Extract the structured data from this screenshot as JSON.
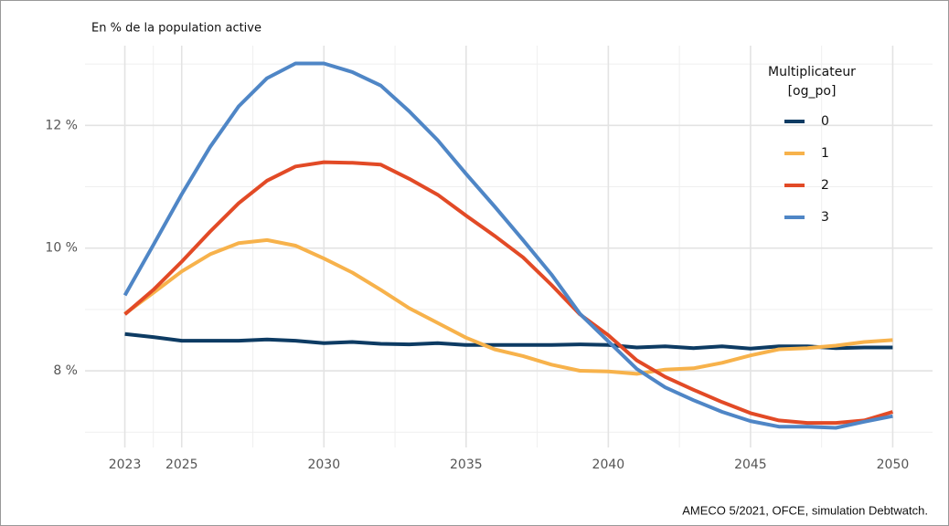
{
  "chart_data": {
    "type": "line",
    "subtitle": "En % de la population active",
    "caption": "AMECO 5/2021, OFCE, simulation Debtwatch.",
    "legend_title": [
      "Multiplicateur",
      "[og_po]"
    ],
    "legend_position": "top-right",
    "grid": true,
    "x": [
      2023,
      2024,
      2025,
      2026,
      2027,
      2028,
      2029,
      2030,
      2031,
      2032,
      2033,
      2034,
      2035,
      2036,
      2037,
      2038,
      2039,
      2040,
      2041,
      2042,
      2043,
      2044,
      2045,
      2046,
      2047,
      2048,
      2049,
      2050
    ],
    "xlim": [
      2021.6,
      2051.4
    ],
    "xticks": [
      2023,
      2025,
      2030,
      2035,
      2040,
      2045,
      2050
    ],
    "ylim": [
      6.75,
      13.3
    ],
    "yticks": [
      {
        "value": 8,
        "label": "8 %"
      },
      {
        "value": 10,
        "label": "10 %"
      },
      {
        "value": 12,
        "label": "12 %"
      }
    ],
    "series": [
      {
        "name": "0",
        "color": "#0d3b63",
        "values": [
          8.6,
          8.55,
          8.49,
          8.49,
          8.49,
          8.51,
          8.49,
          8.45,
          8.47,
          8.44,
          8.43,
          8.45,
          8.42,
          8.42,
          8.42,
          8.42,
          8.43,
          8.42,
          8.38,
          8.4,
          8.37,
          8.4,
          8.36,
          8.4,
          8.4,
          8.37,
          8.38,
          8.38
        ]
      },
      {
        "name": "1",
        "color": "#f7b24b",
        "values": [
          8.93,
          9.27,
          9.62,
          9.9,
          10.08,
          10.13,
          10.04,
          9.83,
          9.6,
          9.32,
          9.02,
          8.78,
          8.54,
          8.35,
          8.24,
          8.1,
          8.0,
          7.99,
          7.95,
          8.02,
          8.04,
          8.13,
          8.25,
          8.35,
          8.37,
          8.41,
          8.47,
          8.5
        ]
      },
      {
        "name": "2",
        "color": "#e24a26",
        "values": [
          8.92,
          9.32,
          9.78,
          10.27,
          10.73,
          11.1,
          11.33,
          11.4,
          11.39,
          11.36,
          11.13,
          10.87,
          10.53,
          10.2,
          9.85,
          9.4,
          8.92,
          8.58,
          8.17,
          7.9,
          7.69,
          7.49,
          7.31,
          7.19,
          7.15,
          7.15,
          7.19,
          7.33
        ]
      },
      {
        "name": "3",
        "color": "#4f86c6",
        "values": [
          9.23,
          10.05,
          10.88,
          11.65,
          12.31,
          12.77,
          13.01,
          13.01,
          12.87,
          12.65,
          12.23,
          11.76,
          11.21,
          10.68,
          10.13,
          9.57,
          8.93,
          8.48,
          8.03,
          7.73,
          7.52,
          7.33,
          7.18,
          7.09,
          7.09,
          7.07,
          7.17,
          7.26
        ]
      }
    ]
  }
}
